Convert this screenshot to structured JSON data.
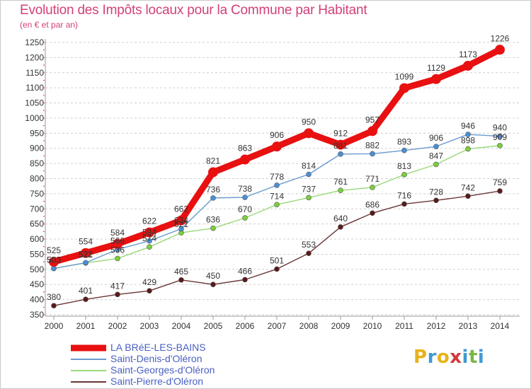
{
  "header": {
    "title": "Evolution des Impôts locaux pour la Commune par Habitant",
    "subtitle": "(en € et par an)"
  },
  "logo": {
    "letters": [
      "P",
      "r",
      "o",
      "x",
      "i",
      "t",
      "i"
    ],
    "colors": [
      "#e8b21a",
      "#3f9ad6",
      "#e8b21a",
      "#d23a3a",
      "#3f9ad6",
      "#7ab648",
      "#3f9ad6"
    ]
  },
  "chart_data": {
    "type": "line",
    "title": "Evolution des Impôts locaux pour la Commune par Habitant",
    "subtitle": "(en € et par an)",
    "xlabel": "",
    "ylabel": "",
    "x": [
      2000,
      2001,
      2002,
      2003,
      2004,
      2005,
      2006,
      2007,
      2008,
      2009,
      2010,
      2011,
      2012,
      2013,
      2014
    ],
    "ylim": [
      350,
      1250
    ],
    "yticks": [
      350,
      400,
      450,
      500,
      550,
      600,
      650,
      700,
      750,
      800,
      850,
      900,
      950,
      1000,
      1050,
      1100,
      1150,
      1200,
      1250
    ],
    "grid": "horizontal dashed",
    "legend_position": "bottom-left",
    "series": [
      {
        "name": "LA BRéE-LES-BAINS",
        "color": "#e81010",
        "marker_fill": "#e81010",
        "values": [
          525,
          554,
          584,
          622,
          662,
          821,
          863,
          906,
          950,
          912,
          957,
          1099,
          1129,
          1173,
          1226
        ]
      },
      {
        "name": "Saint-Denis-d'Oléron",
        "color": "#6a9ad0",
        "marker_fill": "#4a8fd8",
        "values": [
          503,
          522,
          566,
          594,
          634,
          736,
          738,
          778,
          814,
          881,
          882,
          893,
          906,
          946,
          940
        ]
      },
      {
        "name": "Saint-Georges-d'Oléron",
        "color": "#9ad87a",
        "marker_fill": "#7ccf3a",
        "values": [
          503,
          521,
          536,
          574,
          621,
          636,
          670,
          714,
          737,
          761,
          771,
          813,
          847,
          898,
          909
        ]
      },
      {
        "name": "Saint-Pierre-d'Oléron",
        "color": "#6b3636",
        "marker_fill": "#5a1a1a",
        "values": [
          380,
          401,
          417,
          429,
          465,
          450,
          466,
          501,
          553,
          640,
          686,
          716,
          728,
          742,
          759
        ]
      }
    ]
  }
}
